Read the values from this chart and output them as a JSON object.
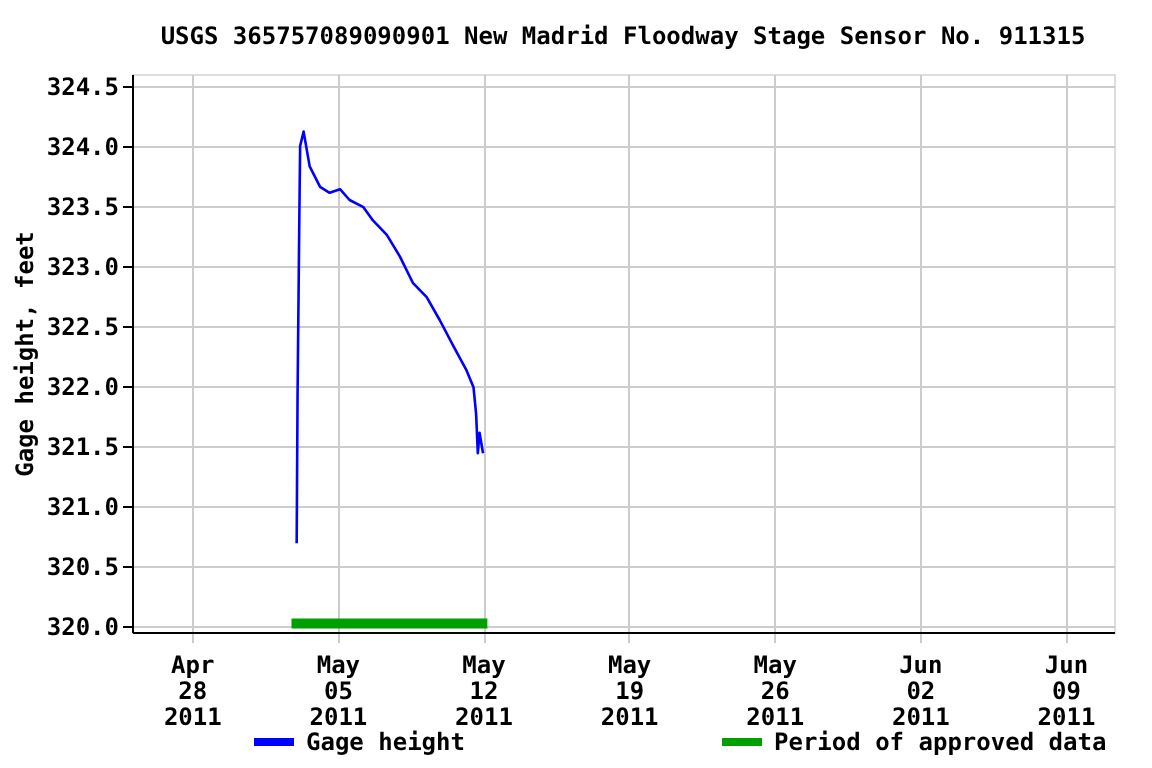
{
  "chart_data": {
    "type": "line",
    "title": "USGS 365757089090901 New Madrid Floodway Stage Sensor No. 911315",
    "ylabel": "Gage height, feet",
    "series": [
      {
        "name": "Gage height",
        "color": "#0000ff",
        "x": [
          "2011-05-03T01:00",
          "2011-05-03T02:00",
          "2011-05-03T04:00",
          "2011-05-03T05:00",
          "2011-05-03T09:00",
          "2011-05-03T16:00",
          "2011-05-04T04:00",
          "2011-05-04T15:00",
          "2011-05-05T03:00",
          "2011-05-05T14:00",
          "2011-05-06T06:00",
          "2011-05-06T17:00",
          "2011-05-07T09:00",
          "2011-05-08T00:00",
          "2011-05-08T15:00",
          "2011-05-09T07:00",
          "2011-05-09T22:00",
          "2011-05-10T14:00",
          "2011-05-11T05:00",
          "2011-05-11T13:00",
          "2011-05-11T16:00",
          "2011-05-11T18:00",
          "2011-05-11T20:00",
          "2011-05-12T00:00"
        ],
        "values": [
          320.69,
          321.91,
          323.36,
          324.0,
          324.12,
          323.83,
          323.66,
          323.61,
          323.64,
          323.55,
          323.49,
          323.38,
          323.26,
          323.08,
          322.86,
          322.74,
          322.55,
          322.33,
          322.13,
          321.99,
          321.77,
          321.44,
          321.61,
          321.44
        ]
      },
      {
        "name": "Period of approved data",
        "color": "#00a000",
        "x": [
          "2011-05-02T19:00",
          "2011-05-12T05:00"
        ],
        "values": [
          320.02,
          320.02
        ]
      }
    ],
    "xlim": [
      "2011-04-25T03:00",
      "2011-06-11T08:00"
    ],
    "xticks": [
      {
        "value": "2011-04-28",
        "label": "Apr 28 2011"
      },
      {
        "value": "2011-05-05",
        "label": "May 05 2011"
      },
      {
        "value": "2011-05-12",
        "label": "May 12 2011"
      },
      {
        "value": "2011-05-19",
        "label": "May 19 2011"
      },
      {
        "value": "2011-05-26",
        "label": "May 26 2011"
      },
      {
        "value": "2011-06-02",
        "label": "Jun 02 2011"
      },
      {
        "value": "2011-06-09",
        "label": "Jun 09 2011"
      }
    ],
    "ylim": [
      319.95,
      324.6
    ],
    "yticks": [
      {
        "value": 320,
        "label": "320.0"
      },
      {
        "value": 320.5,
        "label": "320.5"
      },
      {
        "value": 321,
        "label": "321.0"
      },
      {
        "value": 321.5,
        "label": "321.5"
      },
      {
        "value": 322,
        "label": "322.0"
      },
      {
        "value": 322.5,
        "label": "322.5"
      },
      {
        "value": 323,
        "label": "323.0"
      },
      {
        "value": 323.5,
        "label": "323.5"
      },
      {
        "value": 324,
        "label": "324.0"
      },
      {
        "value": 324.5,
        "label": "324.5"
      }
    ],
    "grid": true,
    "legend": "bottom",
    "line_style": "solid",
    "marker": "none"
  }
}
